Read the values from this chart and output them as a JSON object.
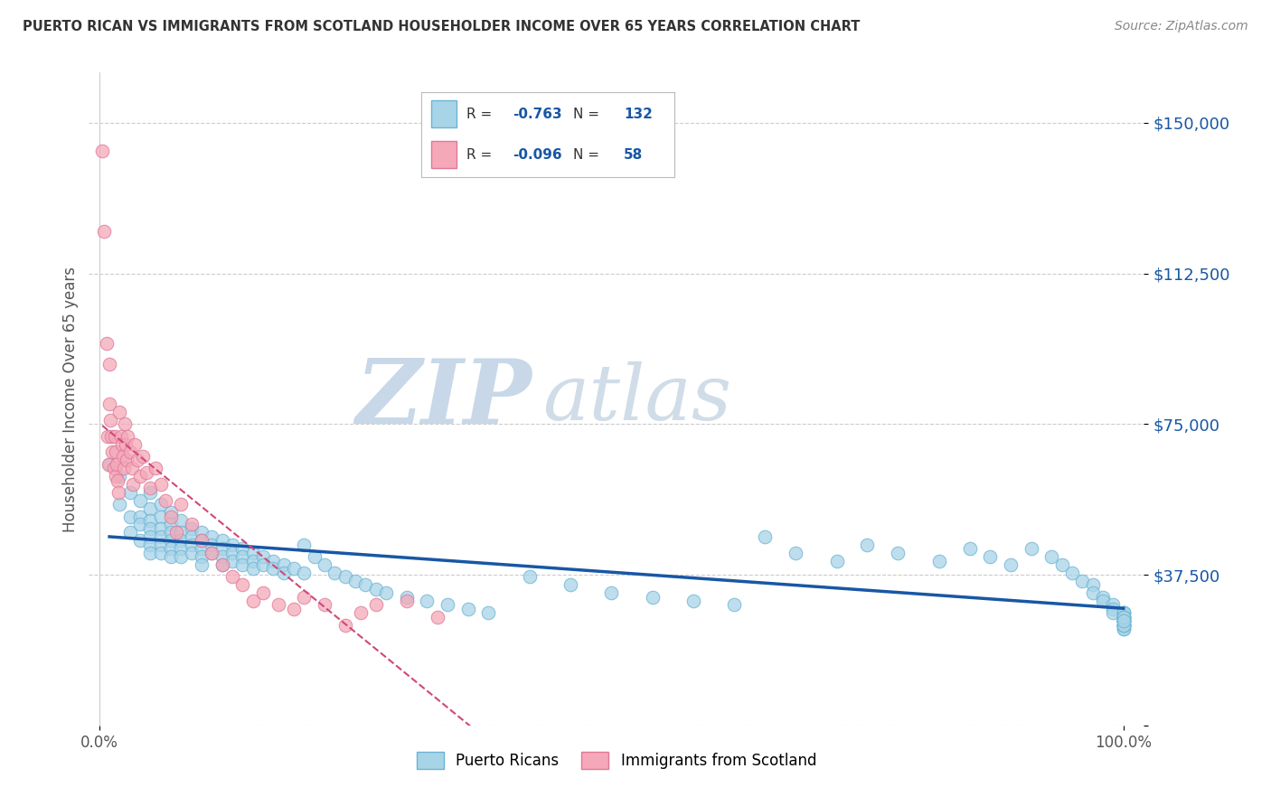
{
  "title": "PUERTO RICAN VS IMMIGRANTS FROM SCOTLAND HOUSEHOLDER INCOME OVER 65 YEARS CORRELATION CHART",
  "source": "Source: ZipAtlas.com",
  "ylabel": "Householder Income Over 65 years",
  "ylim": [
    0,
    162500
  ],
  "xlim": [
    -0.01,
    1.02
  ],
  "yticks": [
    0,
    37500,
    75000,
    112500,
    150000
  ],
  "ytick_labels": [
    "",
    "$37,500",
    "$75,000",
    "$112,500",
    "$150,000"
  ],
  "xtick_vals": [
    0.0,
    1.0
  ],
  "xtick_labels": [
    "0.0%",
    "100.0%"
  ],
  "blue_R": -0.763,
  "blue_N": 132,
  "pink_R": -0.096,
  "pink_N": 58,
  "blue_color": "#a8d4e8",
  "blue_edge": "#6bb3d4",
  "pink_color": "#f4a8b8",
  "pink_edge": "#e07898",
  "blue_line_color": "#1857a4",
  "pink_line_color": "#d04878",
  "pink_line_dash": [
    6,
    4
  ],
  "background_color": "#ffffff",
  "grid_color": "#cccccc",
  "title_color": "#333333",
  "source_color": "#888888",
  "watermark_zip_color": "#c8d8e8",
  "watermark_atlas_color": "#d0dde8",
  "legend_text_color": "#333333",
  "legend_val_color": "#1857a4",
  "ylabel_color": "#555555",
  "ytick_color": "#1857a4",
  "xtick_color": "#555555",
  "blue_scatter_x": [
    0.01,
    0.02,
    0.02,
    0.03,
    0.03,
    0.03,
    0.04,
    0.04,
    0.04,
    0.04,
    0.05,
    0.05,
    0.05,
    0.05,
    0.05,
    0.05,
    0.05,
    0.06,
    0.06,
    0.06,
    0.06,
    0.06,
    0.06,
    0.07,
    0.07,
    0.07,
    0.07,
    0.07,
    0.07,
    0.08,
    0.08,
    0.08,
    0.08,
    0.08,
    0.09,
    0.09,
    0.09,
    0.09,
    0.1,
    0.1,
    0.1,
    0.1,
    0.1,
    0.11,
    0.11,
    0.11,
    0.12,
    0.12,
    0.12,
    0.12,
    0.13,
    0.13,
    0.13,
    0.14,
    0.14,
    0.14,
    0.15,
    0.15,
    0.15,
    0.16,
    0.16,
    0.17,
    0.17,
    0.18,
    0.18,
    0.19,
    0.2,
    0.2,
    0.21,
    0.22,
    0.23,
    0.24,
    0.25,
    0.26,
    0.27,
    0.28,
    0.3,
    0.32,
    0.34,
    0.36,
    0.38,
    0.42,
    0.46,
    0.5,
    0.54,
    0.58,
    0.62,
    0.65,
    0.68,
    0.72,
    0.75,
    0.78,
    0.82,
    0.85,
    0.87,
    0.89,
    0.91,
    0.93,
    0.94,
    0.95,
    0.96,
    0.97,
    0.97,
    0.98,
    0.98,
    0.99,
    0.99,
    0.99,
    1.0,
    1.0,
    1.0,
    1.0,
    1.0,
    1.0,
    1.0,
    1.0,
    1.0,
    1.0,
    1.0,
    1.0,
    1.0,
    1.0,
    1.0,
    1.0,
    1.0,
    1.0,
    1.0,
    1.0,
    1.0,
    1.0,
    1.0,
    1.0
  ],
  "blue_scatter_y": [
    65000,
    62000,
    55000,
    58000,
    52000,
    48000,
    56000,
    52000,
    50000,
    46000,
    58000,
    54000,
    51000,
    49000,
    47000,
    45000,
    43000,
    55000,
    52000,
    49000,
    47000,
    45000,
    43000,
    53000,
    50000,
    48000,
    46000,
    44000,
    42000,
    51000,
    48000,
    46000,
    44000,
    42000,
    49000,
    47000,
    45000,
    43000,
    48000,
    46000,
    44000,
    42000,
    40000,
    47000,
    45000,
    43000,
    46000,
    44000,
    42000,
    40000,
    45000,
    43000,
    41000,
    44000,
    42000,
    40000,
    43000,
    41000,
    39000,
    42000,
    40000,
    41000,
    39000,
    40000,
    38000,
    39000,
    45000,
    38000,
    42000,
    40000,
    38000,
    37000,
    36000,
    35000,
    34000,
    33000,
    32000,
    31000,
    30000,
    29000,
    28000,
    37000,
    35000,
    33000,
    32000,
    31000,
    30000,
    47000,
    43000,
    41000,
    45000,
    43000,
    41000,
    44000,
    42000,
    40000,
    44000,
    42000,
    40000,
    38000,
    36000,
    35000,
    33000,
    32000,
    31000,
    30000,
    29000,
    28000,
    27000,
    26000,
    25000,
    24000,
    26000,
    25000,
    27000,
    26000,
    25000,
    28000,
    27000,
    26000,
    25000,
    24000,
    28000,
    27000,
    26000,
    25000,
    28000,
    27000,
    26000,
    25000,
    27000,
    26000
  ],
  "pink_scatter_x": [
    0.003,
    0.005,
    0.007,
    0.008,
    0.009,
    0.01,
    0.01,
    0.011,
    0.012,
    0.013,
    0.014,
    0.015,
    0.016,
    0.016,
    0.017,
    0.018,
    0.019,
    0.02,
    0.021,
    0.022,
    0.023,
    0.024,
    0.025,
    0.026,
    0.027,
    0.028,
    0.03,
    0.032,
    0.033,
    0.035,
    0.037,
    0.04,
    0.043,
    0.046,
    0.05,
    0.055,
    0.06,
    0.065,
    0.07,
    0.075,
    0.08,
    0.09,
    0.1,
    0.11,
    0.12,
    0.13,
    0.14,
    0.15,
    0.16,
    0.175,
    0.19,
    0.2,
    0.22,
    0.24,
    0.255,
    0.27,
    0.3,
    0.33
  ],
  "pink_scatter_y": [
    143000,
    123000,
    95000,
    72000,
    65000,
    90000,
    80000,
    76000,
    72000,
    68000,
    64000,
    72000,
    68000,
    62000,
    65000,
    61000,
    58000,
    78000,
    72000,
    70000,
    67000,
    64000,
    75000,
    70000,
    66000,
    72000,
    68000,
    64000,
    60000,
    70000,
    66000,
    62000,
    67000,
    63000,
    59000,
    64000,
    60000,
    56000,
    52000,
    48000,
    55000,
    50000,
    46000,
    43000,
    40000,
    37000,
    35000,
    31000,
    33000,
    30000,
    29000,
    32000,
    30000,
    25000,
    28000,
    30000,
    31000,
    27000
  ]
}
